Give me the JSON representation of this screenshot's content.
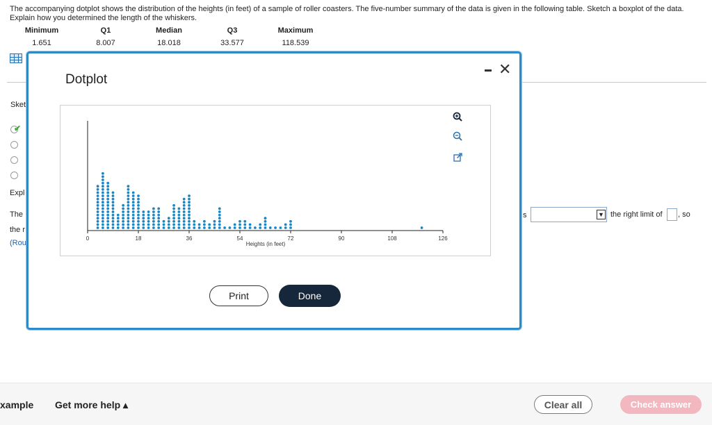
{
  "question": {
    "text": "The accompanying dotplot shows the distribution of the heights (in feet) of a sample of roller coasters. The five-number summary of the data is given in the following table. Sketch a boxplot of the data. Explain how you determined the length of the whiskers."
  },
  "summary": {
    "headers": [
      "Minimum",
      "Q1",
      "Median",
      "Q3",
      "Maximum"
    ],
    "values": [
      "1.651",
      "8.007",
      "18.018",
      "33.577",
      "118.539"
    ]
  },
  "background": {
    "sketch_label": "Sket",
    "explain_label": "Expl",
    "the_label": "The",
    "the_r_label": "the r",
    "round_label": "(Rou",
    "s_fragment": "s",
    "right_limit_text": "the right limit of",
    "so_text": ", so"
  },
  "modal": {
    "title": "Dotplot",
    "print_label": "Print",
    "done_label": "Done",
    "tools": [
      "zoom-in-icon",
      "zoom-out-icon",
      "popout-icon"
    ]
  },
  "chart_data": {
    "type": "dotplot",
    "title": "",
    "xlabel": "Heights (in feet)",
    "ylabel": "",
    "xlim": [
      0,
      126
    ],
    "xticks": [
      0,
      18,
      36,
      54,
      72,
      90,
      108,
      126
    ],
    "dot_color": "#1a86c6",
    "bin_width": 1.8,
    "bins": [
      {
        "x": 3.6,
        "count": 14
      },
      {
        "x": 5.4,
        "count": 18
      },
      {
        "x": 7.2,
        "count": 15
      },
      {
        "x": 9.0,
        "count": 12
      },
      {
        "x": 10.8,
        "count": 5
      },
      {
        "x": 12.6,
        "count": 8
      },
      {
        "x": 14.4,
        "count": 14
      },
      {
        "x": 16.2,
        "count": 12
      },
      {
        "x": 18.0,
        "count": 11
      },
      {
        "x": 19.8,
        "count": 6
      },
      {
        "x": 21.6,
        "count": 6
      },
      {
        "x": 23.4,
        "count": 7
      },
      {
        "x": 25.2,
        "count": 7
      },
      {
        "x": 27.0,
        "count": 3
      },
      {
        "x": 28.8,
        "count": 4
      },
      {
        "x": 30.6,
        "count": 8
      },
      {
        "x": 32.4,
        "count": 7
      },
      {
        "x": 34.2,
        "count": 10
      },
      {
        "x": 36.0,
        "count": 11
      },
      {
        "x": 37.8,
        "count": 3
      },
      {
        "x": 39.6,
        "count": 2
      },
      {
        "x": 41.4,
        "count": 3
      },
      {
        "x": 43.2,
        "count": 2
      },
      {
        "x": 45.0,
        "count": 3
      },
      {
        "x": 46.8,
        "count": 7
      },
      {
        "x": 48.6,
        "count": 1
      },
      {
        "x": 50.4,
        "count": 1
      },
      {
        "x": 52.2,
        "count": 2
      },
      {
        "x": 54.0,
        "count": 3
      },
      {
        "x": 55.8,
        "count": 3
      },
      {
        "x": 57.6,
        "count": 2
      },
      {
        "x": 59.4,
        "count": 1
      },
      {
        "x": 61.2,
        "count": 2
      },
      {
        "x": 63.0,
        "count": 4
      },
      {
        "x": 64.8,
        "count": 1
      },
      {
        "x": 66.6,
        "count": 1
      },
      {
        "x": 68.4,
        "count": 1
      },
      {
        "x": 70.2,
        "count": 2
      },
      {
        "x": 72.0,
        "count": 3
      },
      {
        "x": 118.5,
        "count": 1
      }
    ]
  },
  "footer": {
    "example_label": "xample",
    "help_label": "Get more help ▴",
    "clear_label": "Clear all",
    "check_label": "Check answer"
  }
}
